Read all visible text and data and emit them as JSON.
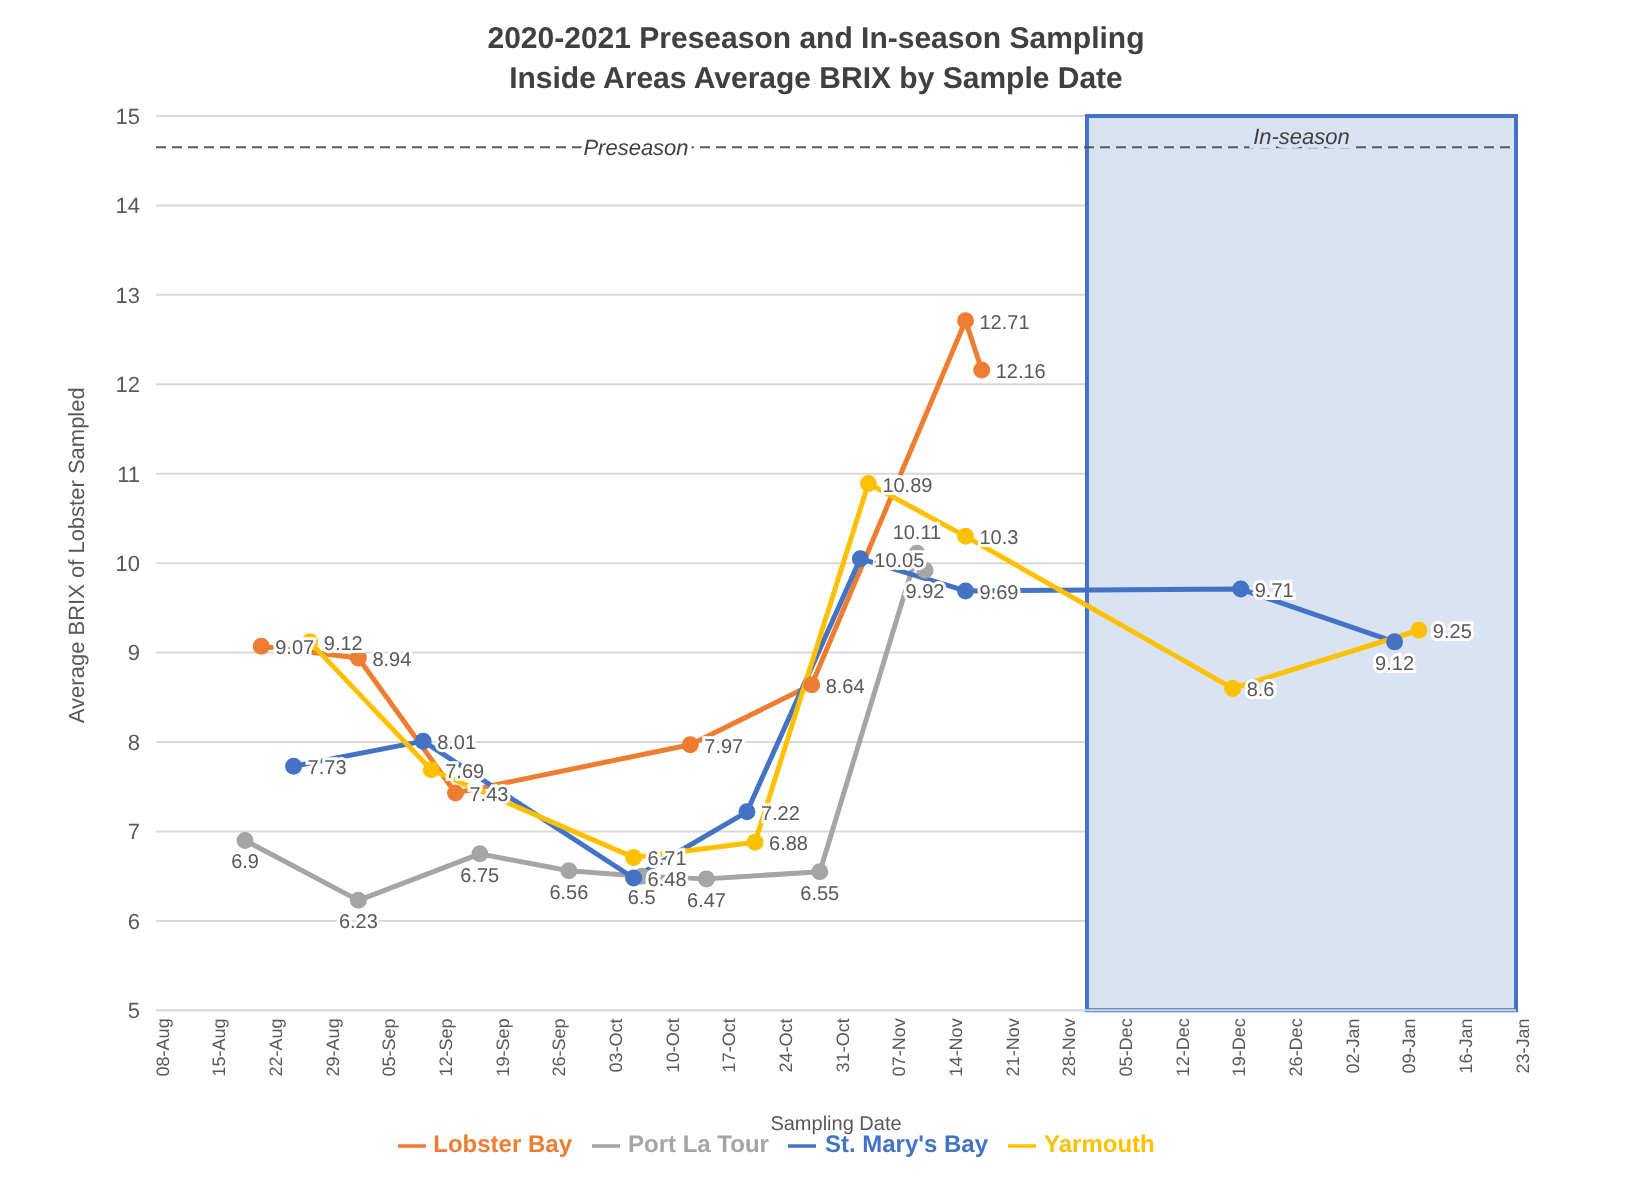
{
  "chart_data": {
    "type": "line",
    "title": "2020-2021 Preseason and In-season Sampling\nInside Areas Average BRIX by Sample Date",
    "xlabel": "Sampling Date",
    "ylabel": "Average BRIX of Lobster Sampled",
    "series": [
      {
        "name": "Lobster Bay",
        "color": "#ed7d31",
        "x": [
          "2020-08-21",
          "2020-09-02",
          "2020-09-14",
          "2020-10-13",
          "2020-10-28",
          "2020-11-16",
          "2020-11-18"
        ],
        "values": [
          9.07,
          8.94,
          7.43,
          7.97,
          8.64,
          12.71,
          12.16
        ]
      },
      {
        "name": "Port La Tour",
        "color": "#a5a5a5",
        "x": [
          "2020-08-19",
          "2020-09-02",
          "2020-09-17",
          "2020-09-28",
          "2020-10-07",
          "2020-10-15",
          "2020-10-29",
          "2020-11-10",
          "2020-11-11"
        ],
        "values": [
          6.9,
          6.23,
          6.75,
          6.56,
          6.5,
          6.47,
          6.55,
          10.11,
          9.92
        ]
      },
      {
        "name": "St. Mary's Bay",
        "color": "#4472c4",
        "x": [
          "2020-08-25",
          "2020-09-10",
          "2020-10-06",
          "2020-10-20",
          "2020-11-03",
          "2020-11-16",
          "2020-12-20",
          "2021-01-08"
        ],
        "values": [
          7.73,
          8.01,
          6.48,
          7.22,
          10.05,
          9.69,
          9.71,
          9.12
        ]
      },
      {
        "name": "Yarmouth",
        "color": "#ffc000",
        "x": [
          "2020-08-27",
          "2020-09-11",
          "2020-10-06",
          "2020-10-21",
          "2020-11-04",
          "2020-11-16",
          "2020-12-19",
          "2021-01-11"
        ],
        "values": [
          9.12,
          7.69,
          6.71,
          6.88,
          10.89,
          10.3,
          8.6,
          9.25
        ]
      }
    ],
    "xlim": [
      "2020-08-08",
      "2021-01-23"
    ],
    "xticks": [
      {
        "value": "2020-08-08",
        "label": "08-Aug"
      },
      {
        "value": "2020-08-15",
        "label": "15-Aug"
      },
      {
        "value": "2020-08-22",
        "label": "22-Aug"
      },
      {
        "value": "2020-08-29",
        "label": "29-Aug"
      },
      {
        "value": "2020-09-05",
        "label": "05-Sep"
      },
      {
        "value": "2020-09-12",
        "label": "12-Sep"
      },
      {
        "value": "2020-09-19",
        "label": "19-Sep"
      },
      {
        "value": "2020-09-26",
        "label": "26-Sep"
      },
      {
        "value": "2020-10-03",
        "label": "03-Oct"
      },
      {
        "value": "2020-10-10",
        "label": "10-Oct"
      },
      {
        "value": "2020-10-17",
        "label": "17-Oct"
      },
      {
        "value": "2020-10-24",
        "label": "24-Oct"
      },
      {
        "value": "2020-10-31",
        "label": "31-Oct"
      },
      {
        "value": "2020-11-07",
        "label": "07-Nov"
      },
      {
        "value": "2020-11-14",
        "label": "14-Nov"
      },
      {
        "value": "2020-11-21",
        "label": "21-Nov"
      },
      {
        "value": "2020-11-28",
        "label": "28-Nov"
      },
      {
        "value": "2020-12-05",
        "label": "05-Dec"
      },
      {
        "value": "2020-12-12",
        "label": "12-Dec"
      },
      {
        "value": "2020-12-19",
        "label": "19-Dec"
      },
      {
        "value": "2020-12-26",
        "label": "26-Dec"
      },
      {
        "value": "2021-01-02",
        "label": "02-Jan"
      },
      {
        "value": "2021-01-09",
        "label": "09-Jan"
      },
      {
        "value": "2021-01-16",
        "label": "16-Jan"
      },
      {
        "value": "2021-01-23",
        "label": "23-Jan"
      }
    ],
    "ylim": [
      5,
      15
    ],
    "yticks": [
      5,
      6,
      7,
      8,
      9,
      10,
      11,
      12,
      13,
      14,
      15
    ],
    "ref_lines": [
      {
        "axis": "y",
        "value": 14.65,
        "label": "Preseason",
        "line_style": "dashed",
        "color": "#595959"
      }
    ],
    "bands": [
      {
        "axis": "x",
        "from": "2020-12-01",
        "to": "2021-01-23",
        "label": "In-season",
        "color": "#dae3f3"
      }
    ],
    "grid": "y",
    "legend": "bottom",
    "marker": "circle",
    "line_style": "solid",
    "data_labels": true
  }
}
